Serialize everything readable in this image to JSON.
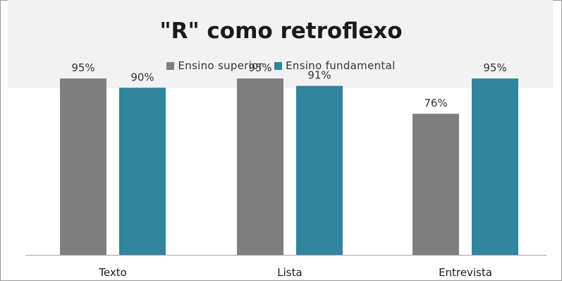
{
  "chart_data": {
    "type": "bar",
    "title": "\"R\" como retroflexo",
    "categories": [
      "Texto",
      "Lista",
      "Entrevista"
    ],
    "series": [
      {
        "name": "Ensino superior",
        "values": [
          95,
          95,
          76
        ],
        "labels": [
          "95%",
          "95%",
          "76%"
        ],
        "color": "#7f7f7f"
      },
      {
        "name": "Ensino fundamental",
        "values": [
          90,
          91,
          95
        ],
        "labels": [
          "90%",
          "91%",
          "95%"
        ],
        "color": "#31859c"
      }
    ],
    "xlabel": "",
    "ylabel": "",
    "ylim": [
      0,
      100
    ],
    "legend_position": "top",
    "grid": false
  }
}
